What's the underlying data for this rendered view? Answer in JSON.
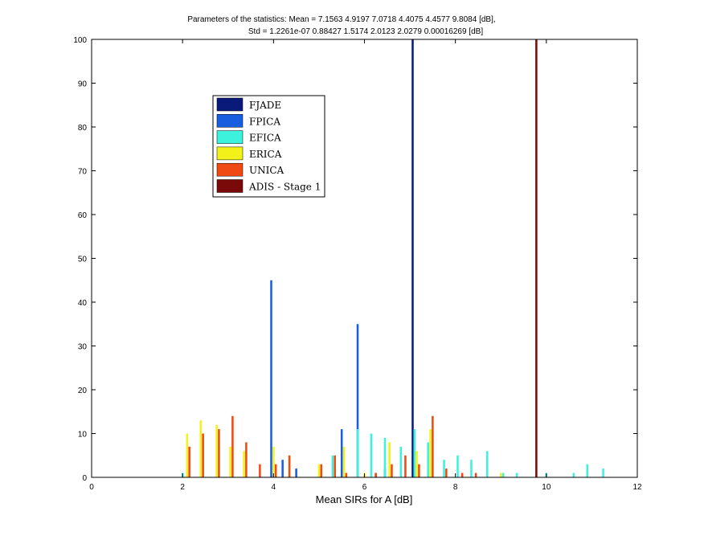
{
  "chart_data": {
    "type": "bar",
    "title_lines": [
      "Parameters of the statistics:    Mean = 7.1563      4.9197      7.0718      4.4075      4.4577      9.8084 [dB],",
      "Std = 1.2261e-07      0.88427      1.5174      2.0123      2.0279  0.00016269 [dB]"
    ],
    "xlabel": "Mean SIRs for A [dB]",
    "ylabel": "",
    "xlim": [
      0,
      12
    ],
    "ylim": [
      0,
      100
    ],
    "xticks": [
      0,
      2,
      4,
      6,
      8,
      10,
      12
    ],
    "yticks": [
      0,
      10,
      20,
      30,
      40,
      50,
      60,
      70,
      80,
      90,
      100
    ],
    "legend_position": "upper-left",
    "grid": false,
    "bar_width": 0.045,
    "series": [
      {
        "name": "FJADE",
        "color": "#0a1a7a",
        "points": [
          [
            7.06,
            100
          ]
        ]
      },
      {
        "name": "FPICA",
        "color": "#1a5ee0",
        "points": [
          [
            3.95,
            45
          ],
          [
            4.2,
            4
          ],
          [
            4.5,
            2
          ],
          [
            5.5,
            11
          ],
          [
            5.85,
            35
          ],
          [
            6.25,
            1
          ],
          [
            6.45,
            2
          ]
        ]
      },
      {
        "name": "EFICA",
        "color": "#3cf2dc",
        "points": [
          [
            2.0,
            1
          ],
          [
            5.3,
            5
          ],
          [
            5.85,
            11
          ],
          [
            6.15,
            10
          ],
          [
            6.45,
            9
          ],
          [
            6.8,
            7
          ],
          [
            7.1,
            11
          ],
          [
            7.4,
            8
          ],
          [
            7.75,
            4
          ],
          [
            8.05,
            5
          ],
          [
            8.35,
            4
          ],
          [
            8.7,
            6
          ],
          [
            9.05,
            1
          ],
          [
            9.35,
            1
          ],
          [
            10.0,
            1
          ],
          [
            10.6,
            1
          ],
          [
            10.9,
            3
          ],
          [
            11.25,
            2
          ]
        ]
      },
      {
        "name": "ERICA",
        "color": "#f2f21a",
        "points": [
          [
            2.1,
            10
          ],
          [
            2.4,
            13
          ],
          [
            2.75,
            12
          ],
          [
            3.05,
            7
          ],
          [
            3.35,
            6
          ],
          [
            4.0,
            7
          ],
          [
            4.35,
            5
          ],
          [
            5.0,
            3
          ],
          [
            5.55,
            7
          ],
          [
            6.0,
            1
          ],
          [
            6.55,
            8
          ],
          [
            7.15,
            6
          ],
          [
            7.45,
            11
          ],
          [
            9.0,
            1
          ]
        ]
      },
      {
        "name": "UNICA",
        "color": "#f04a14",
        "points": [
          [
            2.15,
            7
          ],
          [
            2.45,
            10
          ],
          [
            2.8,
            11
          ],
          [
            3.1,
            14
          ],
          [
            3.4,
            8
          ],
          [
            3.7,
            3
          ],
          [
            4.05,
            3
          ],
          [
            4.35,
            5
          ],
          [
            5.05,
            3
          ],
          [
            5.35,
            5
          ],
          [
            5.6,
            1
          ],
          [
            6.25,
            1
          ],
          [
            6.6,
            3
          ],
          [
            6.9,
            5
          ],
          [
            7.2,
            3
          ],
          [
            7.5,
            14
          ],
          [
            7.8,
            2
          ],
          [
            8.15,
            1
          ],
          [
            8.45,
            1
          ]
        ]
      },
      {
        "name": "ADIS - Stage 1",
        "color": "#7a0a0a",
        "points": [
          [
            9.78,
            100
          ]
        ]
      }
    ]
  }
}
